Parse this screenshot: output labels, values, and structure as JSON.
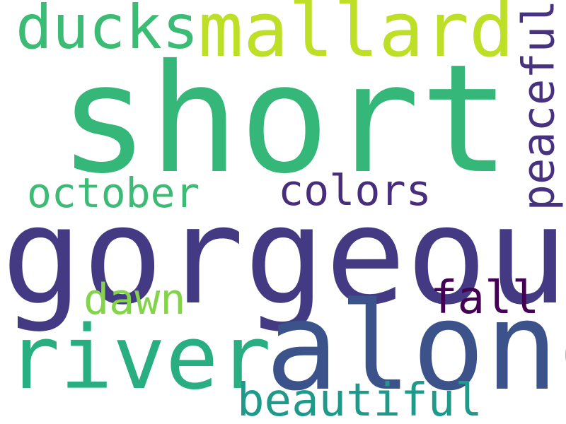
{
  "words": {
    "short": {
      "text": "short",
      "color": "#35b779"
    },
    "gorgeous": {
      "text": "gorgeous",
      "color": "#443a83"
    },
    "along": {
      "text": "along",
      "color": "#3b528b"
    },
    "river": {
      "text": "river",
      "color": "#28ae80"
    },
    "mallard": {
      "text": "mallard",
      "color": "#bddf26"
    },
    "ducks": {
      "text": "ducks",
      "color": "#3cbb75"
    },
    "peaceful": {
      "text": "peaceful",
      "color": "#46327e"
    },
    "october": {
      "text": "october",
      "color": "#3cbb75"
    },
    "colors": {
      "text": "colors",
      "color": "#472d7b"
    },
    "dawn": {
      "text": "dawn",
      "color": "#84d44b"
    },
    "fall": {
      "text": "fall",
      "color": "#440154"
    },
    "beautiful": {
      "text": "beautiful",
      "color": "#1f9a8a"
    }
  }
}
